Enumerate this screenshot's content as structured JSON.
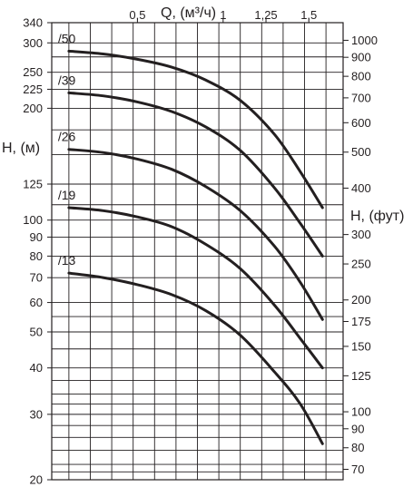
{
  "chart_data": {
    "type": "line",
    "x_axis": {
      "label": "Q, (м³/ч)",
      "ticks": [
        {
          "value": 0.5,
          "label": "0,5"
        },
        {
          "value": 1,
          "label": "1"
        },
        {
          "value": 1.25,
          "label": "1,25"
        },
        {
          "value": 1.5,
          "label": "1,5"
        }
      ],
      "range": [
        0,
        1.7
      ]
    },
    "y_axis_left": {
      "label": "H, (м)",
      "scale": "log",
      "range": [
        20,
        340
      ],
      "ticks": [
        340,
        300,
        250,
        225,
        200,
        125,
        100,
        90,
        80,
        70,
        60,
        50,
        40,
        30,
        20
      ]
    },
    "y_axis_right": {
      "label": "H, (фут)",
      "scale": "log",
      "ticks": [
        1000,
        900,
        800,
        700,
        600,
        500,
        400,
        300,
        250,
        200,
        175,
        150,
        125,
        100,
        90,
        80,
        70
      ]
    },
    "grid": true,
    "series": [
      {
        "name": "/50",
        "x": [
          0.1,
          0.3,
          0.5,
          0.7,
          0.9,
          1.1,
          1.3,
          1.45,
          1.58
        ],
        "y": [
          285,
          280,
          271,
          258,
          238,
          210,
          170,
          135,
          108
        ]
      },
      {
        "name": "/39",
        "x": [
          0.1,
          0.3,
          0.5,
          0.7,
          0.9,
          1.1,
          1.3,
          1.45,
          1.58
        ],
        "y": [
          220,
          216,
          208,
          196,
          178,
          154,
          122,
          98,
          80
        ]
      },
      {
        "name": "/26",
        "x": [
          0.1,
          0.3,
          0.5,
          0.7,
          0.9,
          1.1,
          1.3,
          1.45,
          1.58
        ],
        "y": [
          155,
          152,
          146,
          137,
          123,
          106,
          85,
          68,
          54
        ]
      },
      {
        "name": "/19",
        "x": [
          0.1,
          0.3,
          0.5,
          0.7,
          0.9,
          1.1,
          1.3,
          1.45,
          1.58
        ],
        "y": [
          108,
          106,
          102,
          96,
          86,
          74,
          59,
          48,
          40
        ]
      },
      {
        "name": "/13",
        "x": [
          0.1,
          0.3,
          0.5,
          0.7,
          0.9,
          1.1,
          1.3,
          1.45,
          1.58
        ],
        "y": [
          72,
          70,
          67,
          63,
          57,
          49,
          39,
          32,
          25
        ]
      }
    ]
  }
}
